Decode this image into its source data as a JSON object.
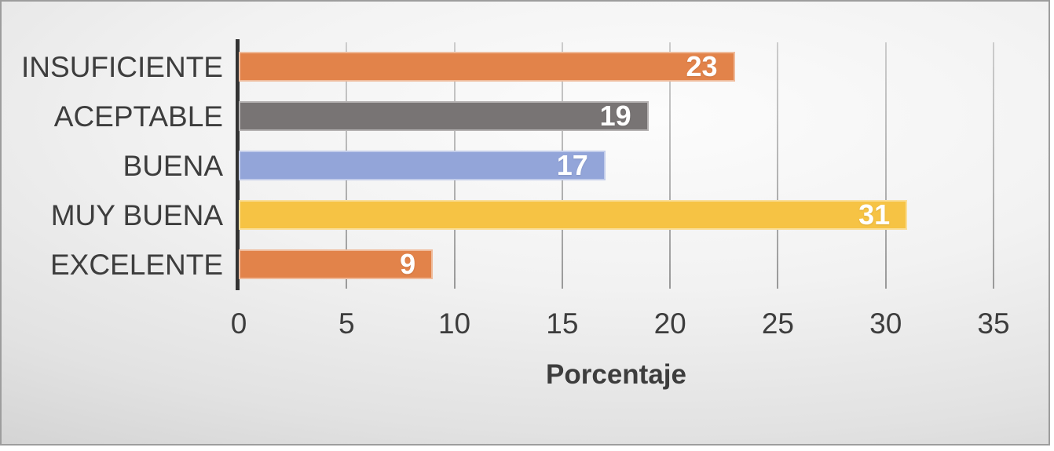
{
  "chart_data": {
    "type": "bar",
    "orientation": "horizontal",
    "title": "",
    "xlabel": "Porcentaje",
    "ylabel": "",
    "categories": [
      "INSUFICIENTE",
      "ACEPTABLE",
      "BUENA",
      "MUY BUENA",
      "EXCELENTE"
    ],
    "values": [
      23,
      19,
      17,
      31,
      9
    ],
    "bar_colors": [
      "#e2834a",
      "#787474",
      "#93a5d9",
      "#f6c344",
      "#e2834a"
    ],
    "x_ticks": [
      0,
      5,
      10,
      15,
      20,
      25,
      30,
      35
    ],
    "xlim": [
      0,
      35
    ],
    "grid": "vertical-on",
    "legend": "none",
    "data_labels": "inside-end",
    "data_label_color": "#ffffff",
    "axis_line_color": "#333333",
    "gridline_color": "#ababab",
    "text_color": "#3d3d3d",
    "background": "gray-gradient"
  }
}
